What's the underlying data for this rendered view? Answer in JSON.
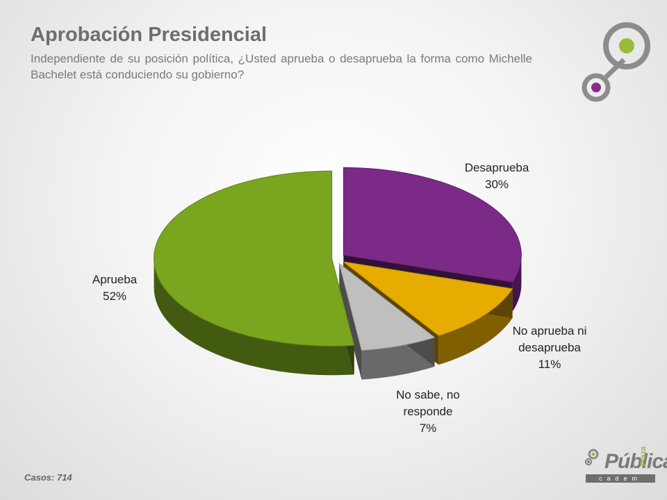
{
  "header": {
    "title": "Aprobación Presidencial",
    "subtitle": "Independiente de su posición política, ¿Usted aprueba o desaprueba la forma como Michelle Bachelet está conduciendo su gobierno?"
  },
  "footer": {
    "cases": "Casos: 714",
    "brand_word": "Pública",
    "brand_plaza": "Plaza",
    "brand_cadem": "cadem"
  },
  "labels": {
    "desaprueba_name": "Desaprueba",
    "desaprueba_value": "30%",
    "no_aprueba_line1": "No aprueba ni",
    "no_aprueba_line2": "desaprueba",
    "no_aprueba_value": "11%",
    "no_sabe_line1": "No sabe, no",
    "no_sabe_line2": "responde",
    "no_sabe_value": "7%",
    "aprueba_name": "Aprueba",
    "aprueba_value": "52%"
  },
  "colors": {
    "desaprueba": "#7b2a88",
    "no_aprueba": "#e6ad00",
    "no_sabe": "#bfbfbf",
    "aprueba": "#7aa51e",
    "accent_green": "#9aba3a",
    "accent_purple": "#8a2b8c"
  },
  "chart_data": {
    "type": "pie",
    "style": "3d-exploded",
    "title": "Aprobación Presidencial",
    "categories": [
      "Desaprueba",
      "No aprueba ni desaprueba",
      "No sabe, no responde",
      "Aprueba"
    ],
    "values": [
      30,
      11,
      7,
      52
    ],
    "unit": "%"
  }
}
